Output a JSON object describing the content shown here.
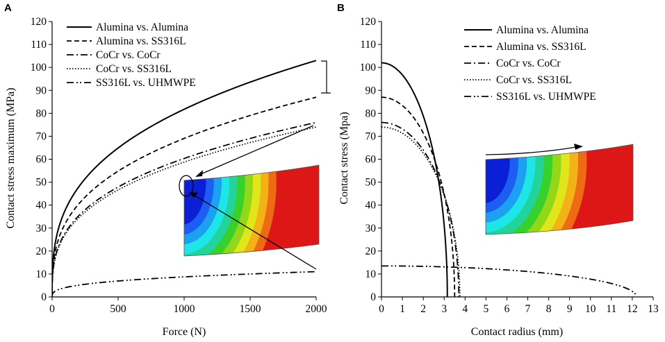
{
  "figure": {
    "colors": {
      "ink": "#000000",
      "background": "#ffffff"
    }
  },
  "chart_data": [
    {
      "panel_letter": "A",
      "type": "line",
      "title": "",
      "xlabel": "Force (N)",
      "ylabel": "Contact stress maximum (MPa)",
      "xlim": [
        0,
        2000
      ],
      "ylim": [
        0,
        120
      ],
      "x_ticks": [
        0,
        500,
        1000,
        1500,
        2000
      ],
      "y_ticks": [
        0,
        10,
        20,
        30,
        40,
        50,
        60,
        70,
        80,
        90,
        100,
        110,
        120
      ],
      "legend_position": "top-left",
      "grid": false,
      "curve_model": "power",
      "series": [
        {
          "name": "Alumina vs. Alumina",
          "style": "solid",
          "end_value": 103,
          "exponent": 0.3333
        },
        {
          "name": "Alumina vs. SS316L",
          "style": "dashed",
          "end_value": 87,
          "exponent": 0.3333
        },
        {
          "name": "CoCr vs. CoCr",
          "style": "dashdot",
          "end_value": 76,
          "exponent": 0.3333
        },
        {
          "name": "CoCr vs. SS316L",
          "style": "dotted",
          "end_value": 74,
          "exponent": 0.3333
        },
        {
          "name": "SS316L vs. UHMWPE",
          "style": "dashdotdot",
          "end_value": 11,
          "exponent": 0.3333
        }
      ],
      "inset": {
        "kind": "contour-plot",
        "palette": [
          "#0a1fd6",
          "#1d5ef2",
          "#1ca0f2",
          "#1ee6e6",
          "#22d49a",
          "#38d02a",
          "#92d818",
          "#e1e61a",
          "#f2b218",
          "#ee6a14",
          "#dd1616"
        ]
      }
    },
    {
      "panel_letter": "B",
      "type": "line",
      "title": "",
      "xlabel": "Contact radius (mm)",
      "ylabel": "Contact stress (Mpa)",
      "xlim": [
        0,
        13
      ],
      "ylim": [
        0,
        120
      ],
      "x_ticks": [
        0,
        1,
        2,
        3,
        4,
        5,
        6,
        7,
        8,
        9,
        10,
        11,
        12,
        13
      ],
      "y_ticks": [
        0,
        10,
        20,
        30,
        40,
        50,
        60,
        70,
        80,
        90,
        100,
        110,
        120
      ],
      "legend_position": "top-center",
      "grid": false,
      "curve_model": "hertz",
      "series": [
        {
          "name": "Alumina vs. Alumina",
          "style": "solid",
          "peak": 102,
          "radius": 3.15
        },
        {
          "name": "Alumina vs. SS316L",
          "style": "dashed",
          "peak": 87,
          "radius": 3.5
        },
        {
          "name": "CoCr vs. CoCr",
          "style": "dashdot",
          "peak": 76,
          "radius": 3.7
        },
        {
          "name": "CoCr vs. SS316L",
          "style": "dotted",
          "peak": 74,
          "radius": 3.75
        },
        {
          "name": "SS316L vs. UHMWPE",
          "style": "dashdotdot",
          "peak": 13.5,
          "radius": 12.2
        }
      ],
      "inset": {
        "kind": "contour-plot",
        "palette": [
          "#0a1fd6",
          "#1d5ef2",
          "#1ca0f2",
          "#1ee6e6",
          "#22d49a",
          "#38d02a",
          "#92d818",
          "#e1e61a",
          "#f2b218",
          "#ee6a14",
          "#dd1616"
        ]
      }
    }
  ]
}
